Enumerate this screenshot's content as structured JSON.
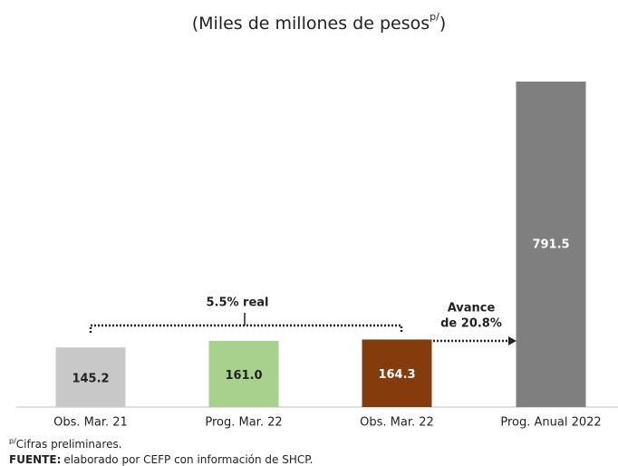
{
  "chart_data": {
    "type": "bar",
    "title": "(Miles de millones de pesos",
    "title_superscript": "p/",
    "title_end": ")",
    "categories": [
      "Obs. Mar. 21",
      "Prog. Mar. 22",
      "Obs. Mar. 22",
      "Prog. Anual 2022"
    ],
    "values": [
      145.2,
      161.0,
      164.3,
      791.5
    ],
    "value_labels": [
      "145.2",
      "161.0",
      "164.3",
      "791.5"
    ],
    "colors": [
      "#c8c8c8",
      "#a9d18e",
      "#843c0c",
      "#7f7f7f"
    ],
    "annotations": [
      "5.5% real",
      "Avance",
      "de 20.8%"
    ],
    "footnote_superscript": "p/",
    "footnote": "Cifras preliminares.",
    "source_label": "FUENTE:",
    "source": "elaborado por CEFP con información de SHCP."
  }
}
